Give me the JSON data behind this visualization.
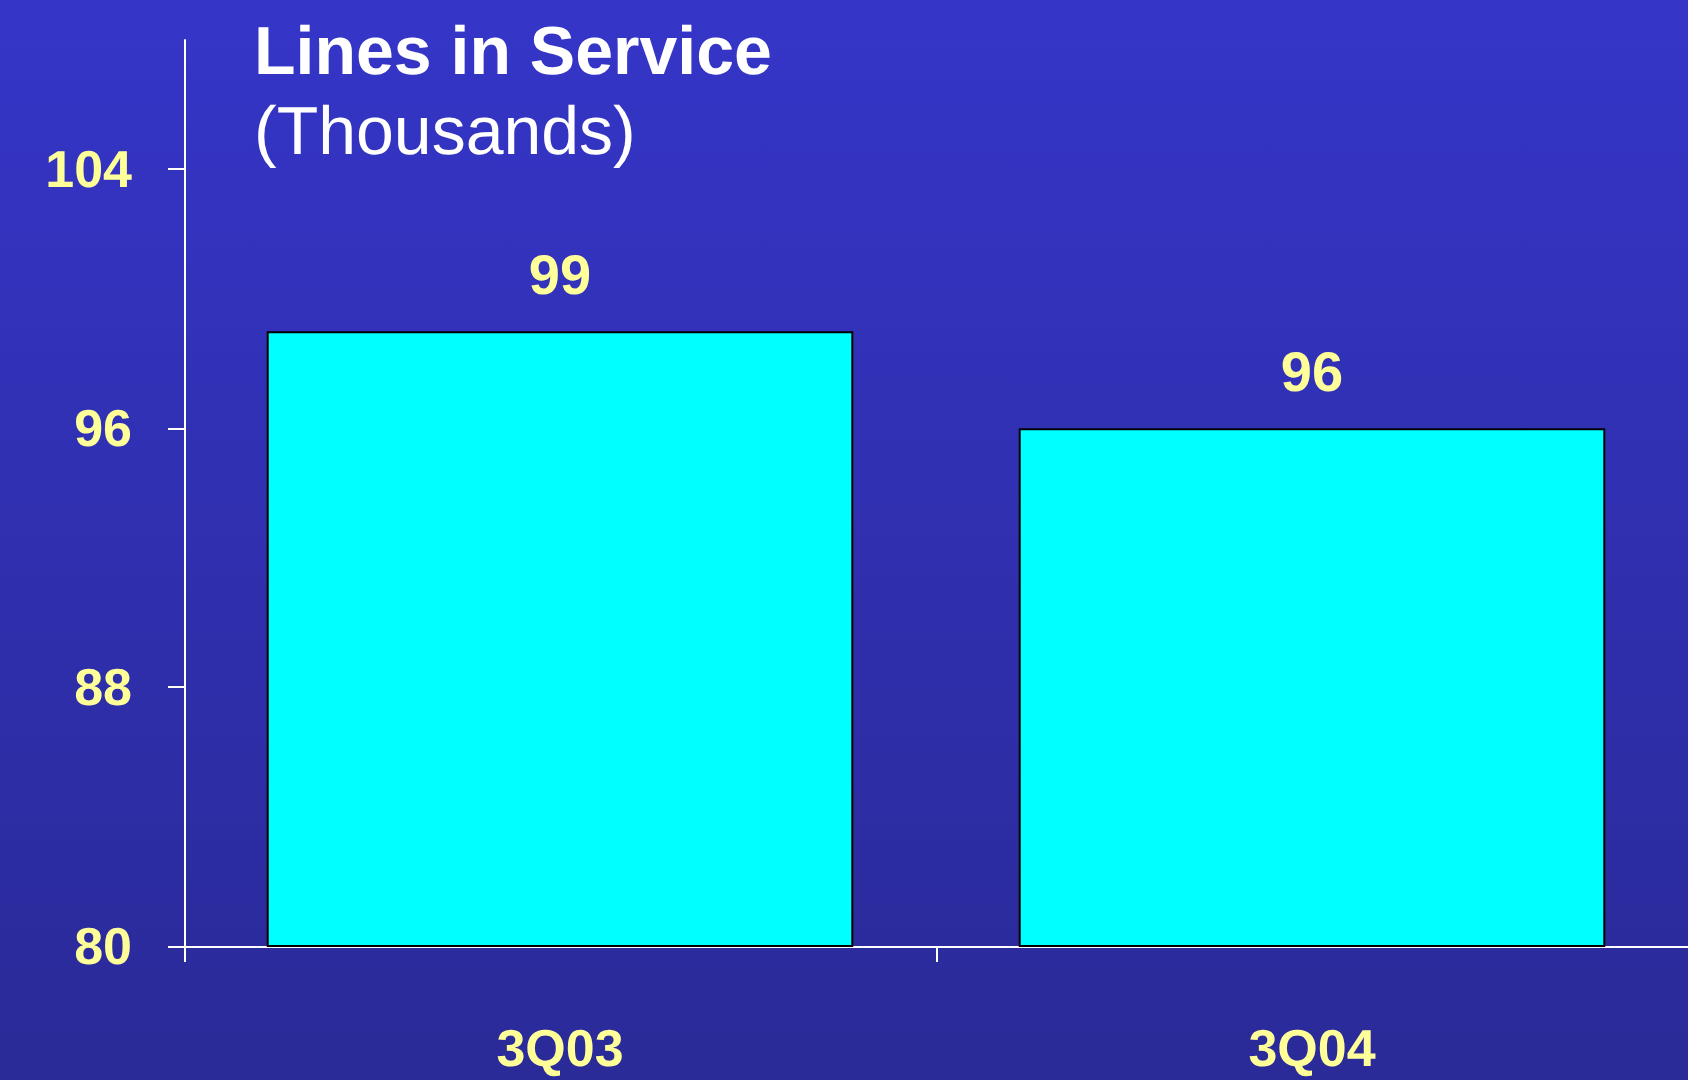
{
  "chart_data": {
    "type": "bar",
    "title": "Lines in Service",
    "subtitle": "(Thousands)",
    "categories": [
      "3Q03",
      "3Q04"
    ],
    "values": [
      99,
      96
    ],
    "color": "#00ffff",
    "ylim": [
      80,
      108
    ],
    "yticks": [
      80,
      88,
      96,
      104
    ],
    "grid": false,
    "data_labels": true
  }
}
